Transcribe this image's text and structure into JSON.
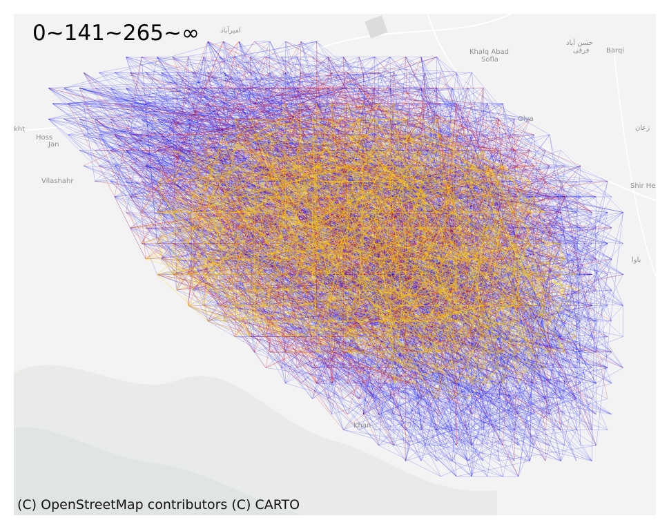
{
  "map": {
    "legend_label": "0~141~265~∞",
    "attribution": "(C) OpenStreetMap contributors (C) CARTO",
    "bin_colors": [
      "#0000ff",
      "#dd0000",
      "#ffd200"
    ],
    "place_labels": {
      "amirabad": "امیرآباد",
      "khalq_abad_fa": "Khalq Abad",
      "khalq_abad_sofla": "Sofla",
      "hasanabad_fa": "حسن آباد",
      "hasanabad_sub": "فرقی",
      "barqi": "Barqi",
      "kht": "kht",
      "hossein": "Hoss",
      "jan": "Jan",
      "vilashahr": "Vilashahr",
      "olya": "Olya",
      "zaran": "زعان",
      "shir_he": "Shir He",
      "bava": "باوا",
      "khan": "Khan"
    }
  }
}
